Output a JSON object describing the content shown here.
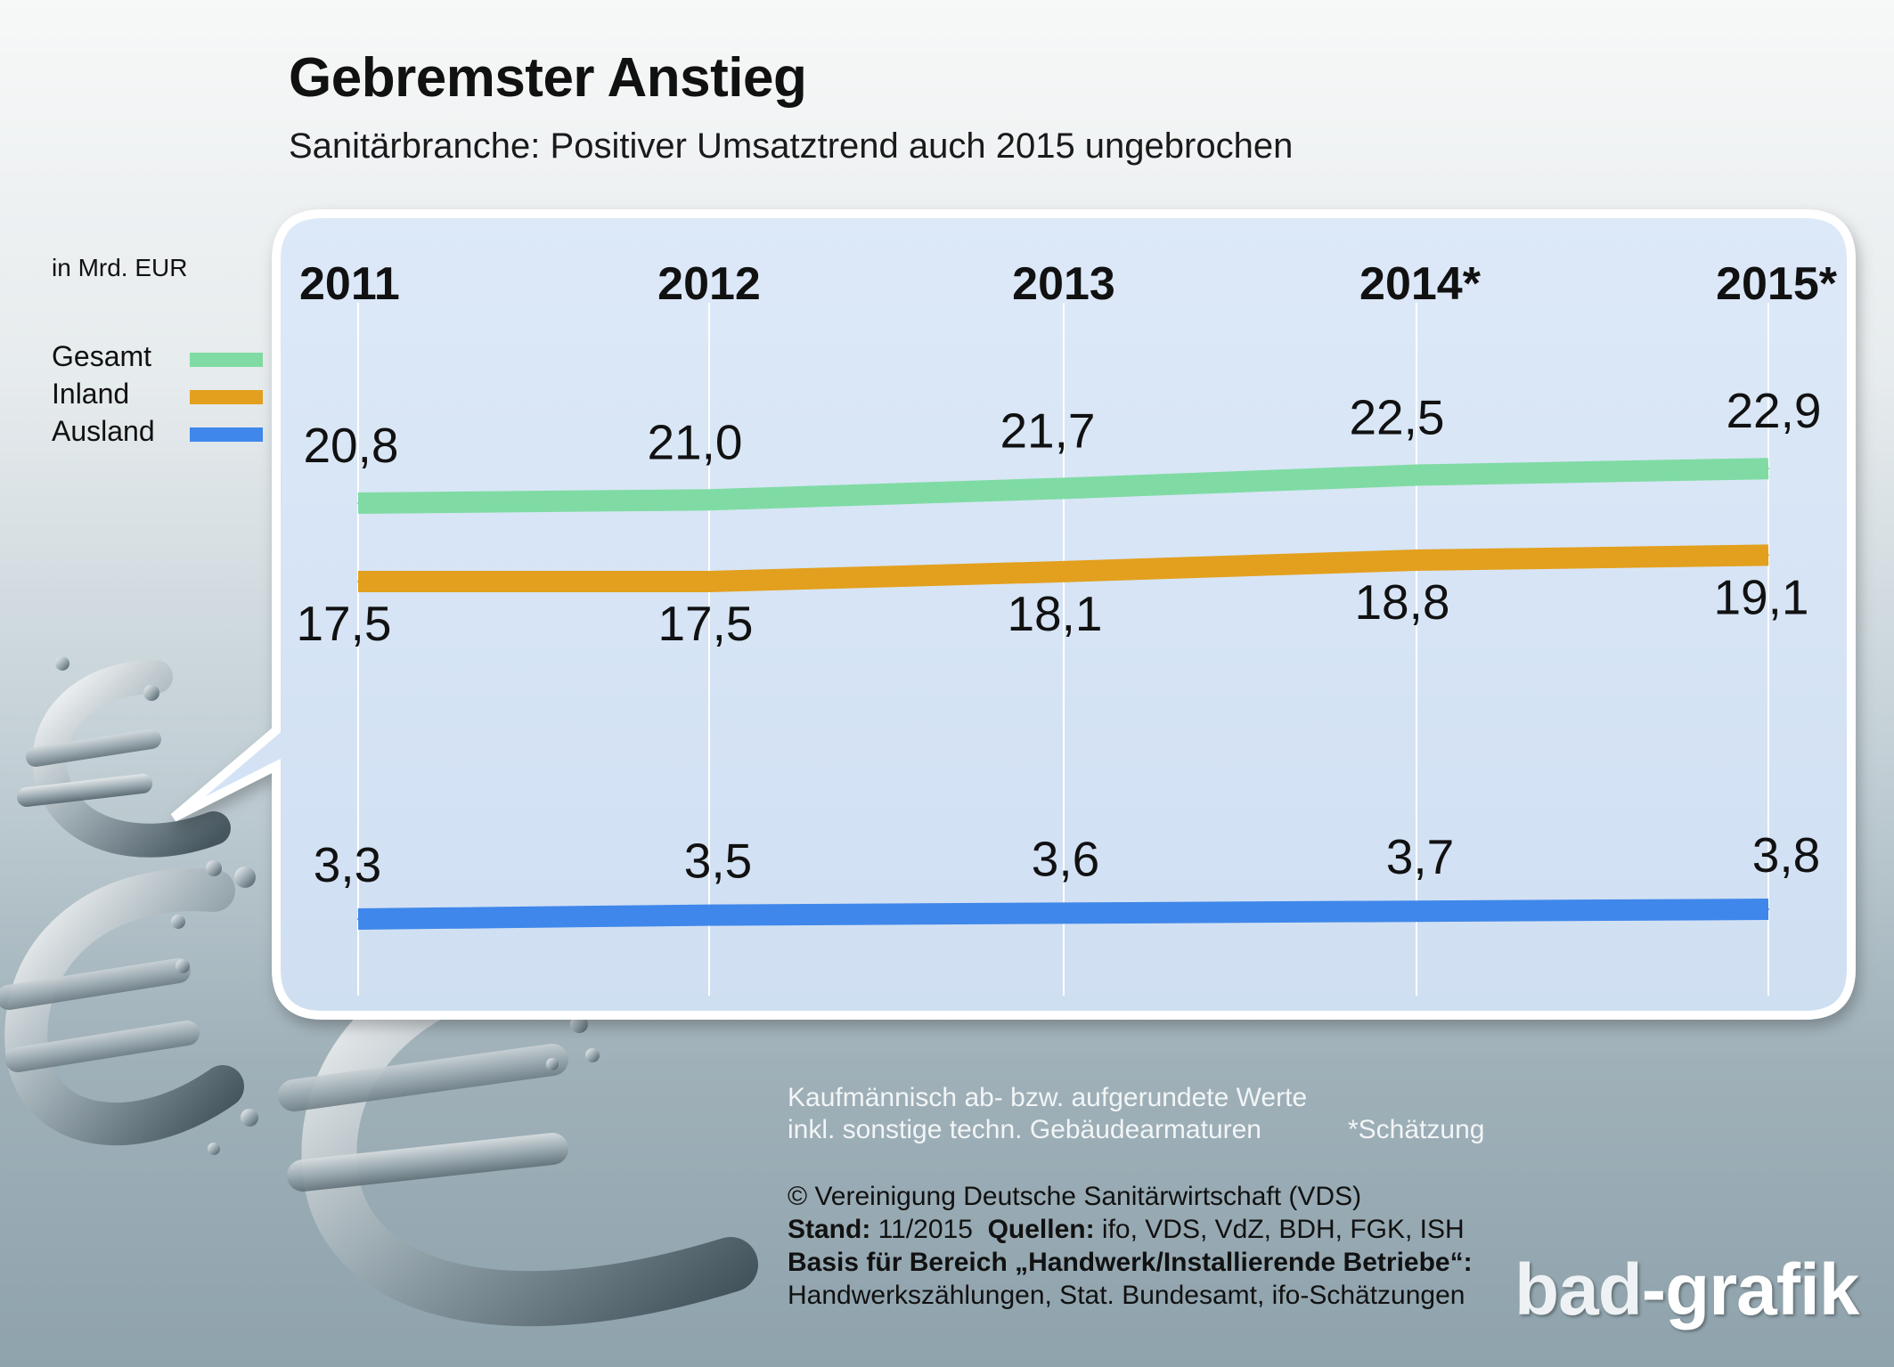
{
  "title": "Gebremster Anstieg",
  "subtitle": "Sanitärbranche: Positiver Umsatztrend auch 2015 ungebrochen",
  "unit": "in Mrd. EUR",
  "legend": [
    {
      "label": "Gesamt",
      "color": "#7fdba3"
    },
    {
      "label": "Inland",
      "color": "#e3a01e"
    },
    {
      "label": "Ausland",
      "color": "#3f87ea"
    }
  ],
  "chart_data": {
    "type": "line",
    "title": "Gebremster Anstieg",
    "subtitle": "Sanitärbranche: Positiver Umsatztrend auch 2015 ungebrochen",
    "ylabel": "in Mrd. EUR",
    "categories": [
      "2011",
      "2012",
      "2013",
      "2014*",
      "2015*"
    ],
    "series": [
      {
        "name": "Gesamt",
        "color": "#7fdba3",
        "values": [
          20.8,
          21.0,
          21.7,
          22.5,
          22.9
        ],
        "labels": [
          "20,8",
          "21,0",
          "21,7",
          "22,5",
          "22,9"
        ]
      },
      {
        "name": "Inland",
        "color": "#e3a01e",
        "values": [
          17.5,
          17.5,
          18.1,
          18.8,
          19.1
        ],
        "labels": [
          "17,5",
          "17,5",
          "18,1",
          "18,8",
          "19,1"
        ]
      },
      {
        "name": "Ausland",
        "color": "#3f87ea",
        "values": [
          3.3,
          3.5,
          3.6,
          3.7,
          3.8
        ],
        "labels": [
          "3,3",
          "3,5",
          "3,6",
          "3,7",
          "3,8"
        ]
      }
    ],
    "grid": "vertical",
    "legend_position": "left"
  },
  "notes": {
    "line1": "Kaufmännisch ab- bzw. aufgerundete Werte",
    "line2": "inkl. sonstige techn. Gebäudearmaturen",
    "estimate": "*Schätzung"
  },
  "source": {
    "copyright": "© Vereinigung Deutsche Sanitärwirtschaft (VDS)",
    "stand_label": "Stand:",
    "stand_value": "11/2015",
    "quellen_label": "Quellen:",
    "quellen_value": "ifo, VDS, VdZ, BDH, FGK, ISH",
    "basis_label": "Basis für Bereich „Handwerk/Installierende Betriebe“:",
    "basis_value": "Handwerkszählungen, Stat. Bundesamt, ifo-Schätzungen"
  },
  "logo": {
    "part1": "bad",
    "part2": "-grafik"
  }
}
